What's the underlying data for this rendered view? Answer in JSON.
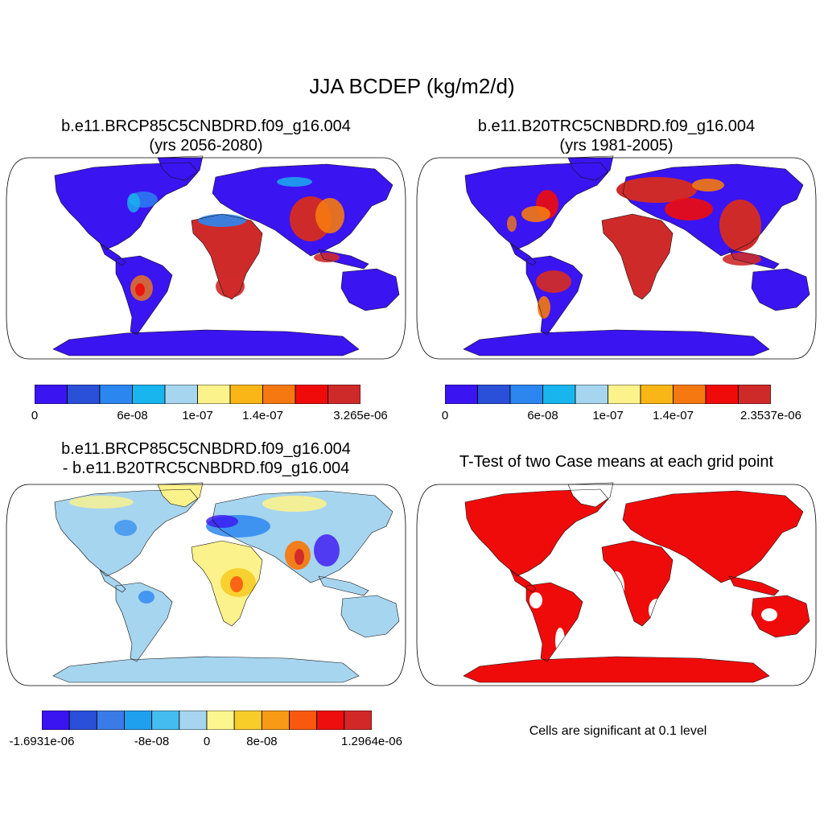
{
  "title": "JJA BCDEP (kg/m2/d)",
  "panels": [
    {
      "id": "p1",
      "title_line1": "b.e11.BRCP85C5CNBDRD.f09_g16.004",
      "title_line2": "(yrs 2056-2080)",
      "colorbar": {
        "colors": [
          "#3b14f2",
          "#2a4fd9",
          "#2c86f0",
          "#19b5ee",
          "#a6d5ef",
          "#fcf28c",
          "#f9b616",
          "#f57910",
          "#f00b0b",
          "#cf2a2a"
        ],
        "tick_labels": [
          "0",
          "6e-08",
          "1e-07",
          "1.4e-07",
          "3.265e-06"
        ]
      }
    },
    {
      "id": "p2",
      "title_line1": "b.e11.B20TRC5CNBDRD.f09_g16.004",
      "title_line2": "(yrs 1981-2005)",
      "colorbar": {
        "colors": [
          "#3b14f2",
          "#2a4fd9",
          "#2c86f0",
          "#19b5ee",
          "#a6d5ef",
          "#fcf28c",
          "#f9b616",
          "#f57910",
          "#f00b0b",
          "#cf2a2a"
        ],
        "tick_labels": [
          "0",
          "6e-08",
          "1e-07",
          "1.4e-07",
          "2.3537e-06"
        ]
      }
    },
    {
      "id": "p3",
      "title_line1": "b.e11.BRCP85C5CNBDRD.f09_g16.004",
      "title_line2": "- b.e11.B20TRC5CNBDRD.f09_g16.004",
      "colorbar": {
        "colors": [
          "#3b14f2",
          "#2a4fd9",
          "#3b7be8",
          "#1ea0ef",
          "#45bcef",
          "#a6d5ef",
          "#fdf68e",
          "#f8cd2a",
          "#f99a16",
          "#f8590f",
          "#ef0e0e",
          "#d22828"
        ],
        "tick_labels": [
          "-1.6931e-06",
          "-8e-08",
          "0",
          "8e-08",
          "1.2964e-06"
        ]
      }
    },
    {
      "id": "p4",
      "title_line1": "T-Test of two Case means at each grid point",
      "title_line2": "",
      "note": "Cells are significant at 0.1 level"
    }
  ]
}
